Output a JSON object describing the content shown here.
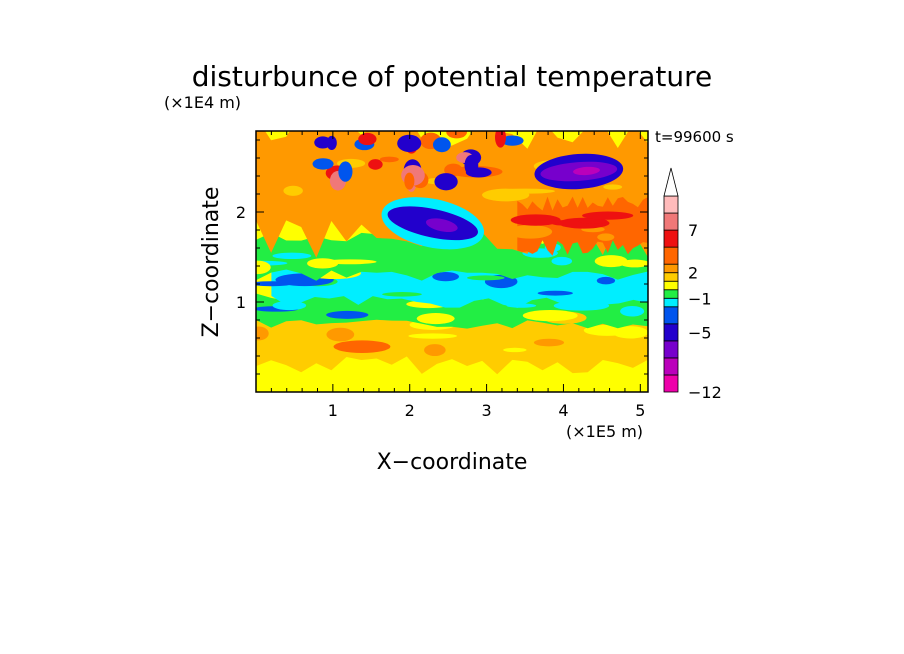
{
  "chart_data": {
    "type": "heatmap",
    "title": "disturbunce of potential temperature",
    "xlabel": "X−coordinate",
    "ylabel": "Z−coordinate",
    "x_unit": "(×1E5 m)",
    "y_unit": "(×1E4 m)",
    "time_label": "t=99600 s",
    "x_range": [
      0,
      5.1
    ],
    "y_range": [
      0,
      2.9
    ],
    "x_ticks": [
      {
        "value": 1,
        "label": "1"
      },
      {
        "value": 2,
        "label": "2"
      },
      {
        "value": 3,
        "label": "3"
      },
      {
        "value": 4,
        "label": "4"
      },
      {
        "value": 5,
        "label": "5"
      }
    ],
    "y_ticks": [
      {
        "value": 1,
        "label": "1"
      },
      {
        "value": 2,
        "label": "2"
      }
    ],
    "colorbar": {
      "range": [
        -12,
        11
      ],
      "extend": "max",
      "labels": [
        {
          "value": -12,
          "label": "−12"
        },
        {
          "value": -5,
          "label": "−5"
        },
        {
          "value": -1,
          "label": "−1"
        },
        {
          "value": 2,
          "label": "2"
        },
        {
          "value": 7,
          "label": "7"
        }
      ],
      "levels": [
        {
          "from": -12,
          "to": -10,
          "color": "#ee00aa"
        },
        {
          "from": -10,
          "to": -8,
          "color": "#bb00bb"
        },
        {
          "from": -8,
          "to": -6,
          "color": "#7700cc"
        },
        {
          "from": -6,
          "to": -4,
          "color": "#2200cc"
        },
        {
          "from": -4,
          "to": -2,
          "color": "#0055ee"
        },
        {
          "from": -2,
          "to": -1,
          "color": "#00eeff"
        },
        {
          "from": -1,
          "to": 0,
          "color": "#22ee44"
        },
        {
          "from": 0,
          "to": 1,
          "color": "#ffff00"
        },
        {
          "from": 1,
          "to": 2,
          "color": "#ffcc00"
        },
        {
          "from": 2,
          "to": 3,
          "color": "#ff9900"
        },
        {
          "from": 3,
          "to": 5,
          "color": "#ff6600"
        },
        {
          "from": 5,
          "to": 7,
          "color": "#ee1111"
        },
        {
          "from": 7,
          "to": 9,
          "color": "#f07878"
        },
        {
          "from": 9,
          "to": 11,
          "color": "#ffbbbb"
        }
      ]
    },
    "regions": [
      {
        "name": "background",
        "value": 0.5
      },
      {
        "name": "lower-orange-band",
        "value": 1.5,
        "x": [
          0,
          5.1
        ],
        "y": [
          0.3,
          0.9
        ]
      },
      {
        "name": "lower-green-band",
        "value": -0.5,
        "x": [
          0,
          5.1
        ],
        "y": [
          0.75,
          1.05
        ]
      },
      {
        "name": "cyan-layer",
        "value": -1.5,
        "x": [
          0.2,
          5.1
        ],
        "y": [
          1.0,
          1.4
        ]
      },
      {
        "name": "green-layer",
        "value": -0.5,
        "x": [
          0,
          5.1
        ],
        "y": [
          1.3,
          1.7
        ]
      },
      {
        "name": "upper-orange-layer",
        "value": 2.5,
        "x": [
          0,
          5.1
        ],
        "y": [
          1.7,
          2.9
        ]
      },
      {
        "name": "upper-right-warm-band",
        "value": 4,
        "x": [
          3.4,
          5.1
        ],
        "y": [
          1.6,
          2.1
        ]
      },
      {
        "name": "central-cold-streak",
        "value": -5,
        "x": [
          1.7,
          2.9
        ],
        "y": [
          1.65,
          2.1
        ]
      },
      {
        "name": "upper-right-cold-cell",
        "value": -8,
        "x": [
          3.7,
          4.7
        ],
        "y": [
          2.3,
          2.6
        ]
      },
      {
        "name": "top-warm-cells",
        "value": 5,
        "x": [
          0.8,
          3.4
        ],
        "y": [
          2.3,
          2.9
        ]
      }
    ]
  }
}
